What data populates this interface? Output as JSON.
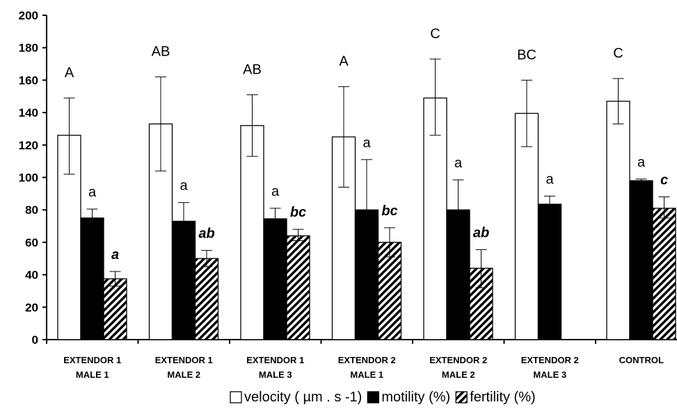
{
  "chart_data": {
    "type": "bar",
    "categories": [
      [
        "EXTENDOR 1",
        "MALE 1"
      ],
      [
        "EXTENDOR 1",
        "MALE 2"
      ],
      [
        "EXTENDOR 1",
        "MALE 3"
      ],
      [
        "EXTENDOR 2",
        "MALE 1"
      ],
      [
        "EXTENDOR 2",
        "MALE 2"
      ],
      [
        "EXTENDOR 2",
        "MALE 3"
      ],
      [
        "CONTROL"
      ]
    ],
    "ylim": [
      0,
      200
    ],
    "yticks": [
      0,
      20,
      40,
      60,
      80,
      100,
      120,
      140,
      160,
      180,
      200
    ],
    "grid": false,
    "legend_position": "bottom",
    "series": [
      {
        "name": "velocity ( µm . s -1)",
        "fill": "white",
        "values": [
          126,
          133,
          132,
          125,
          149,
          139.5,
          147
        ],
        "error": [
          [
            102,
            149
          ],
          [
            104,
            162
          ],
          [
            113,
            151
          ],
          [
            94,
            156
          ],
          [
            126,
            173
          ],
          [
            119,
            160
          ],
          [
            133,
            161
          ]
        ],
        "significance": [
          "A",
          "AB",
          "AB",
          "A",
          "C",
          "BC",
          "C"
        ]
      },
      {
        "name": "motility (%)",
        "fill": "black",
        "values": [
          75,
          73,
          74.5,
          80,
          80,
          83.5,
          98
        ],
        "error": [
          [
            70,
            80.5
          ],
          [
            62,
            84.5
          ],
          [
            68,
            81
          ],
          [
            49,
            111
          ],
          [
            62,
            98.5
          ],
          [
            79,
            88.5
          ],
          [
            96.5,
            99
          ]
        ],
        "significance": [
          "a",
          "a",
          "a",
          "a",
          "a",
          "a",
          "a"
        ]
      },
      {
        "name": "fertility (%)",
        "fill": "hatched",
        "values": [
          37.5,
          50,
          64,
          60,
          44,
          null,
          81
        ],
        "error": [
          [
            33,
            42
          ],
          [
            45,
            55
          ],
          [
            61,
            68
          ],
          [
            51,
            69
          ],
          [
            32,
            55.5
          ],
          null,
          [
            75,
            88
          ]
        ],
        "significance": [
          "a",
          "ab",
          "bc",
          "bc",
          "ab",
          "",
          "c"
        ]
      }
    ]
  }
}
